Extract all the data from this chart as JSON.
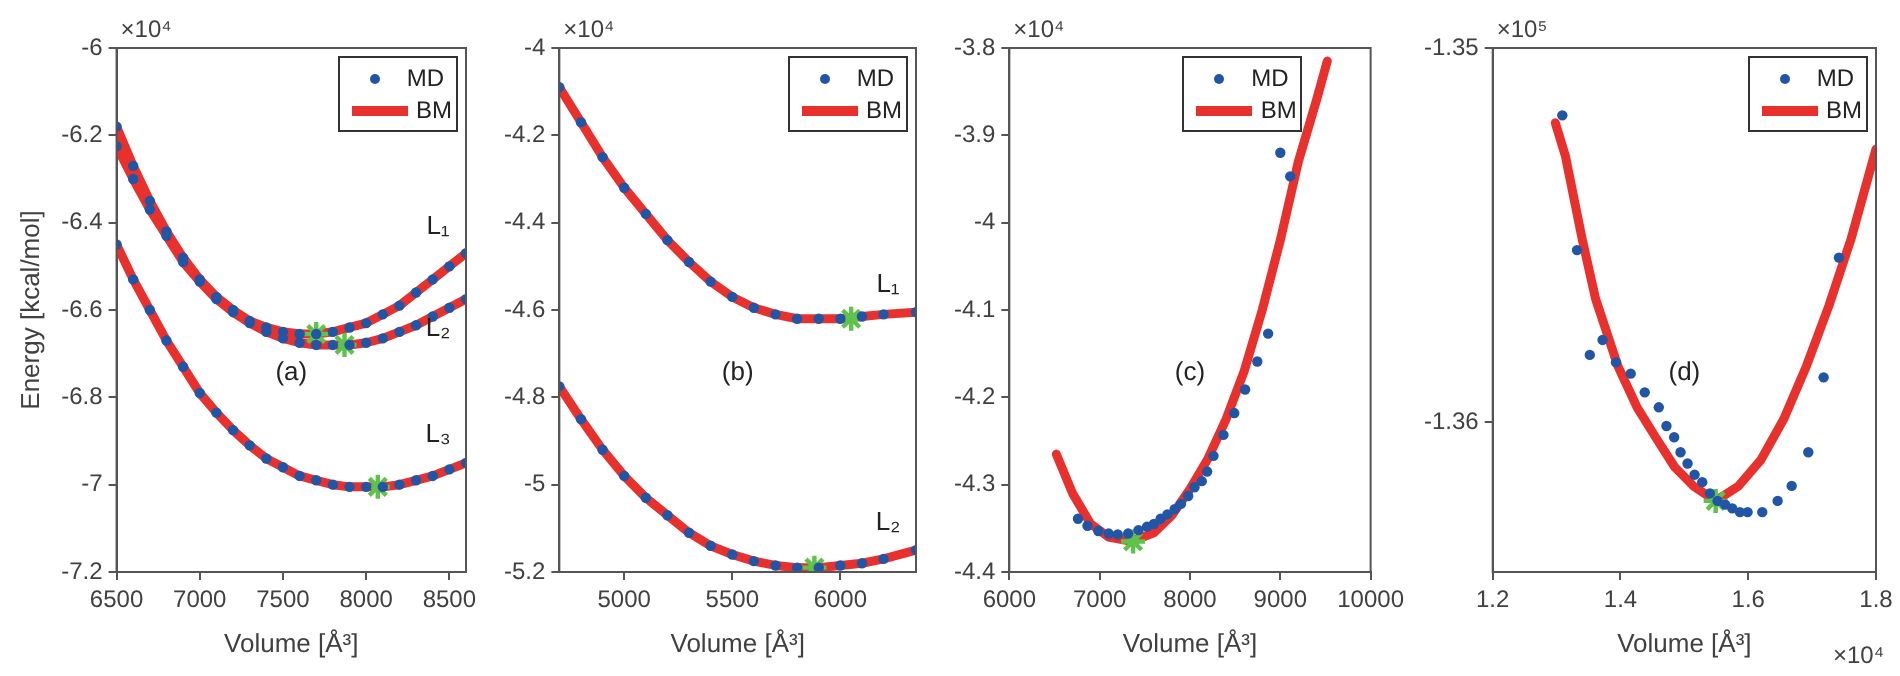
{
  "chart_data": [
    {
      "type": "scatter",
      "xlabel": "Volume [Å³]",
      "ylabel": "Energy [kcal/mol]",
      "xlim": [
        6500,
        8600
      ],
      "xticks": [
        6500,
        7000,
        7500,
        8000,
        8500
      ],
      "ylim": [
        -7.2,
        -6
      ],
      "yticks": [
        -7.2,
        -7,
        -6.8,
        -6.6,
        -6.4,
        -6.2,
        -6
      ],
      "grid": false,
      "legend": "top right",
      "annotations": [
        "×10⁴",
        "L₁",
        "L₂",
        "L₃",
        "(a)"
      ],
      "series": [
        {
          "name": "MD",
          "color": "#2155a6",
          "marker": "circle",
          "x": [
            6500,
            6600,
            6700,
            6800,
            6900,
            7000,
            7100,
            7200,
            7300,
            7400,
            7500,
            7600,
            7700,
            7800,
            7900,
            8000,
            8100,
            8200,
            8300,
            8400,
            8500,
            8600,
            6500,
            6600,
            6700,
            6800,
            6900,
            7000,
            7100,
            7200,
            7300,
            7400,
            7500,
            7600,
            7700,
            7800,
            7900,
            8000,
            8100,
            8200,
            8300,
            8400,
            8500,
            8600,
            6500,
            6600,
            6700,
            6800,
            6900,
            7000,
            7100,
            7200,
            7300,
            7400,
            7500,
            7600,
            7700,
            7800,
            7900,
            8000,
            8100,
            8200,
            8300,
            8400,
            8500,
            8600
          ],
          "values": [
            -6.18,
            -6.27,
            -6.35,
            -6.42,
            -6.48,
            -6.53,
            -6.57,
            -6.6,
            -6.625,
            -6.64,
            -6.65,
            -6.655,
            -6.655,
            -6.65,
            -6.64,
            -6.63,
            -6.61,
            -6.59,
            -6.56,
            -6.53,
            -6.5,
            -6.47,
            -6.225,
            -6.3,
            -6.37,
            -6.43,
            -6.49,
            -6.535,
            -6.575,
            -6.605,
            -6.63,
            -6.65,
            -6.665,
            -6.675,
            -6.68,
            -6.68,
            -6.68,
            -6.675,
            -6.665,
            -6.65,
            -6.635,
            -6.615,
            -6.595,
            -6.575,
            -6.45,
            -6.53,
            -6.6,
            -6.67,
            -6.73,
            -6.79,
            -6.835,
            -6.875,
            -6.91,
            -6.94,
            -6.96,
            -6.98,
            -6.99,
            -7,
            -7.005,
            -7.005,
            -7.005,
            -7,
            -6.99,
            -6.98,
            -6.965,
            -6.95
          ]
        },
        {
          "type": "line",
          "name": "BM",
          "color": "#e8312d",
          "line_style": "solid",
          "marker": "none",
          "x": [
            6500,
            6600,
            6700,
            6800,
            6900,
            7000,
            7100,
            7200,
            7300,
            7400,
            7500,
            7600,
            7700,
            7800,
            7900,
            8000,
            8100,
            8200,
            8300,
            8400,
            8500,
            8600
          ],
          "values": [
            -6.18,
            -6.27,
            -6.35,
            -6.42,
            -6.48,
            -6.53,
            -6.57,
            -6.6,
            -6.625,
            -6.64,
            -6.65,
            -6.655,
            -6.655,
            -6.65,
            -6.64,
            -6.63,
            -6.61,
            -6.59,
            -6.56,
            -6.53,
            -6.5,
            -6.47
          ]
        },
        {
          "type": "line",
          "color": "#e8312d",
          "line_style": "solid",
          "marker": "none",
          "x": [
            6500,
            6600,
            6700,
            6800,
            6900,
            7000,
            7100,
            7200,
            7300,
            7400,
            7500,
            7600,
            7700,
            7800,
            7900,
            8000,
            8100,
            8200,
            8300,
            8400,
            8500,
            8600
          ],
          "values": [
            -6.225,
            -6.3,
            -6.37,
            -6.43,
            -6.49,
            -6.535,
            -6.575,
            -6.605,
            -6.63,
            -6.65,
            -6.665,
            -6.675,
            -6.68,
            -6.68,
            -6.68,
            -6.675,
            -6.665,
            -6.65,
            -6.635,
            -6.615,
            -6.595,
            -6.575
          ]
        },
        {
          "type": "line",
          "color": "#e8312d",
          "line_style": "solid",
          "marker": "none",
          "x": [
            6500,
            6600,
            6700,
            6800,
            6900,
            7000,
            7100,
            7200,
            7300,
            7400,
            7500,
            7600,
            7700,
            7800,
            7900,
            8000,
            8100,
            8200,
            8300,
            8400,
            8500,
            8600
          ],
          "values": [
            -6.45,
            -6.53,
            -6.6,
            -6.67,
            -6.73,
            -6.79,
            -6.835,
            -6.875,
            -6.91,
            -6.94,
            -6.96,
            -6.98,
            -6.99,
            -7,
            -7.005,
            -7.005,
            -7.005,
            -7,
            -6.99,
            -6.98,
            -6.965,
            -6.95
          ]
        },
        {
          "color": "#5fc24a",
          "marker": "cross",
          "x": [
            7700,
            7870,
            8070
          ],
          "values": [
            -6.655,
            -6.68,
            -7.005
          ]
        }
      ]
    },
    {
      "type": "scatter",
      "xlabel": "Volume [Å³]",
      "xlim": [
        4700,
        6350
      ],
      "xticks": [
        5000,
        5500,
        6000
      ],
      "ylim": [
        -5.2,
        -4
      ],
      "yticks": [
        -5.2,
        -5,
        -4.8,
        -4.6,
        -4.4,
        -4.2,
        -4
      ],
      "grid": false,
      "legend": "top right",
      "annotations": [
        "×10⁴",
        "L₁",
        "L₂",
        "(b)"
      ],
      "series": [
        {
          "name": "MD",
          "color": "#2155a6",
          "marker": "circle",
          "x": [
            4700,
            4800,
            4900,
            5000,
            5100,
            5200,
            5300,
            5400,
            5500,
            5600,
            5700,
            5800,
            5900,
            6000,
            6100,
            6200,
            6350,
            4700,
            4800,
            4900,
            5000,
            5100,
            5200,
            5300,
            5400,
            5500,
            5600,
            5700,
            5800,
            5900,
            6000,
            6100,
            6200,
            6350
          ],
          "values": [
            -4.09,
            -4.17,
            -4.25,
            -4.32,
            -4.38,
            -4.44,
            -4.49,
            -4.535,
            -4.57,
            -4.595,
            -4.61,
            -4.62,
            -4.62,
            -4.62,
            -4.615,
            -4.61,
            -4.605,
            -4.775,
            -4.85,
            -4.92,
            -4.98,
            -5.03,
            -5.07,
            -5.11,
            -5.14,
            -5.16,
            -5.175,
            -5.185,
            -5.19,
            -5.19,
            -5.185,
            -5.18,
            -5.17,
            -5.15
          ]
        },
        {
          "type": "line",
          "name": "BM",
          "color": "#e8312d",
          "line_style": "solid",
          "marker": "none",
          "x": [
            4700,
            4800,
            4900,
            5000,
            5100,
            5200,
            5300,
            5400,
            5500,
            5600,
            5700,
            5800,
            5900,
            6000,
            6100,
            6200,
            6350
          ],
          "values": [
            -4.09,
            -4.17,
            -4.25,
            -4.32,
            -4.38,
            -4.44,
            -4.49,
            -4.535,
            -4.57,
            -4.595,
            -4.61,
            -4.62,
            -4.62,
            -4.62,
            -4.615,
            -4.61,
            -4.605
          ]
        },
        {
          "type": "line",
          "color": "#e8312d",
          "line_style": "solid",
          "marker": "none",
          "x": [
            4700,
            4800,
            4900,
            5000,
            5100,
            5200,
            5300,
            5400,
            5500,
            5600,
            5700,
            5800,
            5900,
            6000,
            6100,
            6200,
            6350
          ],
          "values": [
            -4.775,
            -4.85,
            -4.92,
            -4.98,
            -5.03,
            -5.07,
            -5.11,
            -5.14,
            -5.16,
            -5.175,
            -5.185,
            -5.19,
            -5.19,
            -5.185,
            -5.18,
            -5.17,
            -5.15
          ]
        },
        {
          "color": "#5fc24a",
          "marker": "cross",
          "x": [
            6050,
            5880
          ],
          "values": [
            -4.62,
            -5.19
          ]
        }
      ]
    },
    {
      "type": "scatter",
      "xlabel": "Volume [Å³]",
      "xlim": [
        6000,
        10000
      ],
      "xticks": [
        6000,
        7000,
        8000,
        9000,
        10000
      ],
      "ylim": [
        -4.4,
        -3.8
      ],
      "yticks": [
        -4.4,
        -4.3,
        -4.2,
        -4.1,
        -4,
        -3.9,
        -3.8
      ],
      "grid": false,
      "legend": "top right",
      "annotations": [
        "×10⁴",
        "(c)"
      ],
      "series": [
        {
          "name": "MD",
          "color": "#2155a6",
          "marker": "circle",
          "x": [
            6760,
            6865,
            6985,
            7100,
            7200,
            7315,
            7430,
            7525,
            7600,
            7675,
            7750,
            7830,
            7900,
            7980,
            8050,
            8130,
            8190,
            8260,
            8370,
            8490,
            8610,
            8745,
            8865,
            9000,
            9110
          ],
          "values": [
            -4.339,
            -4.347,
            -4.353,
            -4.356,
            -4.357,
            -4.356,
            -4.352,
            -4.348,
            -4.345,
            -4.339,
            -4.334,
            -4.328,
            -4.322,
            -4.313,
            -4.303,
            -4.296,
            -4.285,
            -4.267,
            -4.243,
            -4.218,
            -4.191,
            -4.159,
            -4.127,
            -3.92,
            -3.947
          ]
        },
        {
          "type": "line",
          "name": "BM",
          "color": "#e8312d",
          "line_style": "solid",
          "marker": "none",
          "x": [
            6520,
            6700,
            6900,
            7100,
            7350,
            7600,
            7800,
            8000,
            8200,
            8400,
            8600,
            8800,
            9000,
            9200,
            9400,
            9520
          ],
          "values": [
            -4.265,
            -4.31,
            -4.345,
            -4.36,
            -4.365,
            -4.355,
            -4.335,
            -4.305,
            -4.27,
            -4.225,
            -4.17,
            -4.1,
            -4.02,
            -3.93,
            -3.86,
            -3.815
          ]
        },
        {
          "color": "#5fc24a",
          "marker": "cross",
          "x": [
            7370
          ],
          "values": [
            -4.365
          ]
        }
      ]
    },
    {
      "type": "scatter",
      "xlabel": "Volume [Å³]",
      "xlim": [
        1.2,
        1.8
      ],
      "xticks": [
        1.2,
        1.4,
        1.6,
        1.8
      ],
      "ylim": [
        -1.364,
        -1.35
      ],
      "yticks": [
        -1.36,
        -1.35
      ],
      "grid": false,
      "legend": "top right",
      "annotations": [
        "×10⁵",
        "×10⁴",
        "(d)"
      ],
      "series": [
        {
          "name": "MD",
          "color": "#2155a6",
          "marker": "circle",
          "x": [
            1.309,
            1.332,
            1.352,
            1.372,
            1.393,
            1.416,
            1.438,
            1.46,
            1.472,
            1.484,
            1.494,
            1.505,
            1.516,
            1.528,
            1.54,
            1.552,
            1.564,
            1.575,
            1.587,
            1.599,
            1.622,
            1.646,
            1.668,
            1.694,
            1.718,
            1.742
          ],
          "values": [
            -1.3518,
            -1.3554,
            -1.3582,
            -1.3578,
            -1.3584,
            -1.3587,
            -1.3592,
            -1.3596,
            -1.3601,
            -1.3604,
            -1.3608,
            -1.3611,
            -1.3614,
            -1.3616,
            -1.3619,
            -1.3621,
            -1.3622,
            -1.3623,
            -1.3624,
            -1.3624,
            -1.3624,
            -1.3621,
            -1.3617,
            -1.3608,
            -1.3588,
            -1.3556
          ]
        },
        {
          "type": "line",
          "name": "BM",
          "color": "#e8312d",
          "line_style": "solid",
          "marker": "none",
          "x": [
            1.298,
            1.314,
            1.34,
            1.361,
            1.396,
            1.426,
            1.455,
            1.485,
            1.514,
            1.549,
            1.585,
            1.62,
            1.656,
            1.691,
            1.726,
            1.761,
            1.8
          ],
          "values": [
            -1.352,
            -1.3529,
            -1.3551,
            -1.3567,
            -1.3585,
            -1.3596,
            -1.3604,
            -1.3612,
            -1.3617,
            -1.3621,
            -1.3617,
            -1.361,
            -1.3599,
            -1.3585,
            -1.3569,
            -1.3551,
            -1.3527
          ]
        },
        {
          "color": "#5fc24a",
          "marker": "cross",
          "x": [
            1.549
          ],
          "values": [
            -1.3621
          ]
        }
      ]
    }
  ]
}
